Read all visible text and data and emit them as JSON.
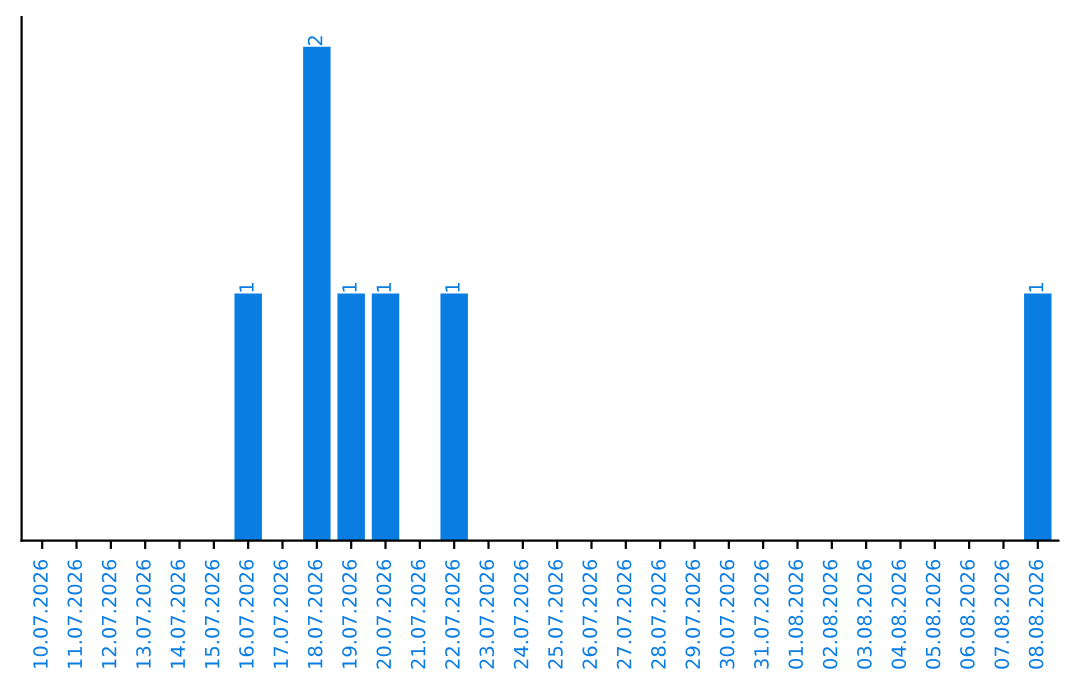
{
  "chart_data": {
    "type": "bar",
    "categories": [
      "10.07.2026",
      "11.07.2026",
      "12.07.2026",
      "13.07.2026",
      "14.07.2026",
      "15.07.2026",
      "16.07.2026",
      "17.07.2026",
      "18.07.2026",
      "19.07.2026",
      "20.07.2026",
      "21.07.2026",
      "22.07.2026",
      "23.07.2026",
      "24.07.2026",
      "25.07.2026",
      "26.07.2026",
      "27.07.2026",
      "28.07.2026",
      "29.07.2026",
      "30.07.2026",
      "31.07.2026",
      "01.08.2026",
      "02.08.2026",
      "03.08.2026",
      "04.08.2026",
      "05.08.2026",
      "06.08.2026",
      "07.08.2026",
      "08.08.2026"
    ],
    "values": [
      0,
      0,
      0,
      0,
      0,
      0,
      1,
      0,
      2,
      1,
      1,
      0,
      1,
      0,
      0,
      0,
      0,
      0,
      0,
      0,
      0,
      0,
      0,
      0,
      0,
      0,
      0,
      0,
      0,
      1
    ],
    "color": "#0a7de3",
    "value_labels": [
      null,
      null,
      null,
      null,
      null,
      null,
      "1",
      null,
      "2",
      "1",
      "1",
      null,
      "1",
      null,
      null,
      null,
      null,
      null,
      null,
      null,
      null,
      null,
      null,
      null,
      null,
      null,
      null,
      null,
      null,
      "1"
    ],
    "tick_labels": "x",
    "grid": false,
    "legend": false
  }
}
